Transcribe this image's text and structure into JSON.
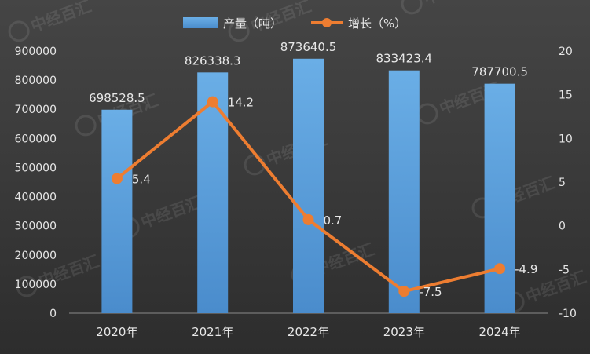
{
  "chart_data": {
    "type": "bar+line",
    "categories": [
      "2020年",
      "2021年",
      "2022年",
      "2023年",
      "2024年"
    ],
    "series": [
      {
        "name": "产量（吨）",
        "type": "bar",
        "axis": "left",
        "values": [
          698528.5,
          826338.3,
          873640.5,
          833423.4,
          787700.5
        ],
        "labels": [
          "698528.5",
          "826338.3",
          "873640.5",
          "833423.4",
          "787700.5"
        ]
      },
      {
        "name": "增长（%）",
        "type": "line",
        "axis": "right",
        "values": [
          5.4,
          14.2,
          0.7,
          -7.5,
          -4.9
        ],
        "labels": [
          "5.4",
          "14.2",
          "0.7",
          "-7.5",
          "-4.9"
        ]
      }
    ],
    "y_left": {
      "ticks": [
        "0",
        "100000",
        "200000",
        "300000",
        "400000",
        "500000",
        "600000",
        "700000",
        "800000",
        "900000"
      ],
      "lim": [
        0,
        900000
      ]
    },
    "y_right": {
      "ticks": [
        "-10",
        "-5",
        "0",
        "5",
        "10",
        "15",
        "20"
      ],
      "lim": [
        -10,
        20
      ]
    },
    "legend_position": "top",
    "grid": false,
    "colors": {
      "bar": "#5b9bd5",
      "line": "#ed7d31"
    }
  },
  "watermark_text": "中经百汇"
}
